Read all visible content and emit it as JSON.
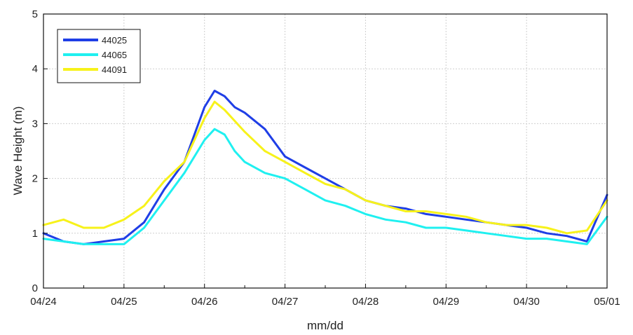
{
  "chart_data": {
    "type": "line",
    "title": "",
    "xlabel": "mm/dd",
    "ylabel": "Wave Height (m)",
    "xlim": [
      "04/24",
      "05/01"
    ],
    "ylim": [
      0,
      5
    ],
    "x_ticks": [
      "04/24",
      "04/25",
      "04/26",
      "04/27",
      "04/28",
      "04/29",
      "04/30",
      "05/01"
    ],
    "y_ticks": [
      "0",
      "1",
      "2",
      "3",
      "4",
      "5"
    ],
    "grid": true,
    "legend_position": "top-left",
    "series": [
      {
        "name": "44025",
        "color": "#1f3ee6",
        "x": [
          "04/24 00:00",
          "04/24 06:00",
          "04/24 12:00",
          "04/24 18:00",
          "04/25 00:00",
          "04/25 06:00",
          "04/25 12:00",
          "04/25 18:00",
          "04/26 00:00",
          "04/26 03:00",
          "04/26 06:00",
          "04/26 09:00",
          "04/26 12:00",
          "04/26 18:00",
          "04/27 00:00",
          "04/27 06:00",
          "04/27 12:00",
          "04/27 18:00",
          "04/28 00:00",
          "04/28 06:00",
          "04/28 12:00",
          "04/28 18:00",
          "04/29 00:00",
          "04/29 06:00",
          "04/29 12:00",
          "04/29 18:00",
          "04/30 00:00",
          "04/30 06:00",
          "04/30 12:00",
          "04/30 18:00",
          "05/01 00:00"
        ],
        "y": [
          1.0,
          0.85,
          0.8,
          0.85,
          0.9,
          1.2,
          1.8,
          2.3,
          3.3,
          3.6,
          3.5,
          3.3,
          3.2,
          2.9,
          2.4,
          2.2,
          2.0,
          1.8,
          1.6,
          1.5,
          1.45,
          1.35,
          1.3,
          1.25,
          1.2,
          1.15,
          1.1,
          1.0,
          0.95,
          0.85,
          1.7
        ]
      },
      {
        "name": "44065",
        "color": "#1ff0f0",
        "x": [
          "04/24 00:00",
          "04/24 06:00",
          "04/24 12:00",
          "04/24 18:00",
          "04/25 00:00",
          "04/25 06:00",
          "04/25 12:00",
          "04/25 18:00",
          "04/26 00:00",
          "04/26 03:00",
          "04/26 06:00",
          "04/26 09:00",
          "04/26 12:00",
          "04/26 18:00",
          "04/27 00:00",
          "04/27 06:00",
          "04/27 12:00",
          "04/27 18:00",
          "04/28 00:00",
          "04/28 06:00",
          "04/28 12:00",
          "04/28 18:00",
          "04/29 00:00",
          "04/29 06:00",
          "04/29 12:00",
          "04/29 18:00",
          "04/30 00:00",
          "04/30 06:00",
          "04/30 12:00",
          "04/30 18:00",
          "05/01 00:00"
        ],
        "y": [
          0.9,
          0.85,
          0.8,
          0.8,
          0.8,
          1.1,
          1.6,
          2.1,
          2.7,
          2.9,
          2.8,
          2.5,
          2.3,
          2.1,
          2.0,
          1.8,
          1.6,
          1.5,
          1.35,
          1.25,
          1.2,
          1.1,
          1.1,
          1.05,
          1.0,
          0.95,
          0.9,
          0.9,
          0.85,
          0.8,
          1.3
        ]
      },
      {
        "name": "44091",
        "color": "#f7f21a",
        "x": [
          "04/24 00:00",
          "04/24 06:00",
          "04/24 12:00",
          "04/24 18:00",
          "04/25 00:00",
          "04/25 06:00",
          "04/25 12:00",
          "04/25 18:00",
          "04/26 00:00",
          "04/26 03:00",
          "04/26 06:00",
          "04/26 09:00",
          "04/26 12:00",
          "04/26 18:00",
          "04/27 00:00",
          "04/27 06:00",
          "04/27 12:00",
          "04/27 18:00",
          "04/28 00:00",
          "04/28 06:00",
          "04/28 12:00",
          "04/28 18:00",
          "04/29 00:00",
          "04/29 06:00",
          "04/29 12:00",
          "04/29 18:00",
          "04/30 00:00",
          "04/30 06:00",
          "04/30 12:00",
          "04/30 18:00",
          "05/01 00:00"
        ],
        "y": [
          1.15,
          1.25,
          1.1,
          1.1,
          1.25,
          1.5,
          1.95,
          2.3,
          3.1,
          3.4,
          3.25,
          3.05,
          2.85,
          2.5,
          2.3,
          2.1,
          1.9,
          1.8,
          1.6,
          1.5,
          1.4,
          1.4,
          1.35,
          1.3,
          1.2,
          1.15,
          1.15,
          1.1,
          1.0,
          1.05,
          1.6
        ]
      }
    ]
  }
}
